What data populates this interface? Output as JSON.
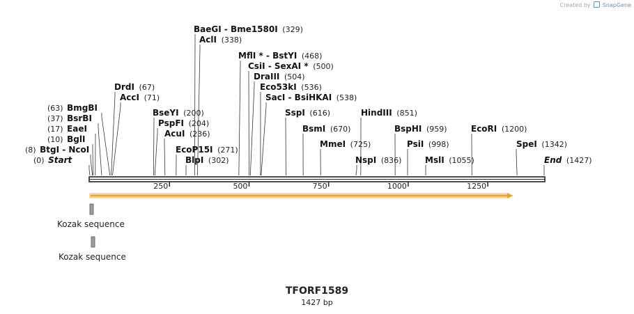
{
  "header": {
    "credit_prefix": "Created by",
    "credit_brand": "SnapGene"
  },
  "plasmid": {
    "name": "TFORF1589",
    "length_label": "1427 bp",
    "length": 1427
  },
  "axis": {
    "ticks": [
      "250",
      "500",
      "750",
      "1000",
      "1250"
    ]
  },
  "sites": [
    {
      "names": [
        "BaeGI",
        "Bme1580I"
      ],
      "pos": "(329)",
      "tick": 329
    },
    {
      "names": [
        "AclI"
      ],
      "pos": "(338)",
      "tick": 338
    },
    {
      "names": [
        "MflI *",
        "BstYI"
      ],
      "pos": "(468)",
      "tick": 468
    },
    {
      "names": [
        "CsiI",
        "SexAI *"
      ],
      "pos": "(500)",
      "tick": 500
    },
    {
      "names": [
        "DraIII"
      ],
      "pos": "(504)",
      "tick": 504
    },
    {
      "names": [
        "Eco53kI"
      ],
      "pos": "(536)",
      "tick": 536
    },
    {
      "names": [
        "SacI",
        "BsiHKAI"
      ],
      "pos": "(538)",
      "tick": 538
    },
    {
      "names": [
        "DrdI"
      ],
      "pos": "(67)",
      "tick": 67
    },
    {
      "names": [
        "AccI"
      ],
      "pos": "(71)",
      "tick": 71
    },
    {
      "names": [
        "BmgBI"
      ],
      "pos": "(63)",
      "tick": 63
    },
    {
      "names": [
        "BsrBI"
      ],
      "pos": "(37)",
      "tick": 37
    },
    {
      "names": [
        "EaeI"
      ],
      "pos": "(17)",
      "tick": 17
    },
    {
      "names": [
        "BglI"
      ],
      "pos": "(10)",
      "tick": 10
    },
    {
      "names": [
        "BtgI",
        "NcoI"
      ],
      "pos": "(8)",
      "tick": 8
    },
    {
      "names": [
        "Start"
      ],
      "pos": "(0)",
      "tick": 0,
      "italic": true
    },
    {
      "names": [
        "BseYI"
      ],
      "pos": "(200)",
      "tick": 200
    },
    {
      "names": [
        "PspFI"
      ],
      "pos": "(204)",
      "tick": 204
    },
    {
      "names": [
        "AcuI"
      ],
      "pos": "(236)",
      "tick": 236
    },
    {
      "names": [
        "EcoP15I"
      ],
      "pos": "(271)",
      "tick": 271
    },
    {
      "names": [
        "BlpI"
      ],
      "pos": "(302)",
      "tick": 302
    },
    {
      "names": [
        "SspI"
      ],
      "pos": "(616)",
      "tick": 616
    },
    {
      "names": [
        "BsmI"
      ],
      "pos": "(670)",
      "tick": 670
    },
    {
      "names": [
        "MmeI"
      ],
      "pos": "(725)",
      "tick": 725
    },
    {
      "names": [
        "HindIII"
      ],
      "pos": "(851)",
      "tick": 851
    },
    {
      "names": [
        "NspI"
      ],
      "pos": "(836)",
      "tick": 836
    },
    {
      "names": [
        "BspHI"
      ],
      "pos": "(959)",
      "tick": 959
    },
    {
      "names": [
        "PsiI"
      ],
      "pos": "(998)",
      "tick": 998
    },
    {
      "names": [
        "MslI"
      ],
      "pos": "(1055)",
      "tick": 1055
    },
    {
      "names": [
        "EcoRI"
      ],
      "pos": "(1200)",
      "tick": 1200
    },
    {
      "names": [
        "SpeI"
      ],
      "pos": "(1342)",
      "tick": 1342
    },
    {
      "names": [
        "End"
      ],
      "pos": "(1427)",
      "tick": 1427,
      "italic": true
    }
  ],
  "features": [
    {
      "name": "Kozak sequence"
    },
    {
      "name": "Kozak sequence"
    }
  ],
  "colors": {
    "orf": "#e8a33a",
    "orf_shadow": "#f4d7a6",
    "feature_box": "#9e9e9e",
    "backbone": "#222222"
  }
}
